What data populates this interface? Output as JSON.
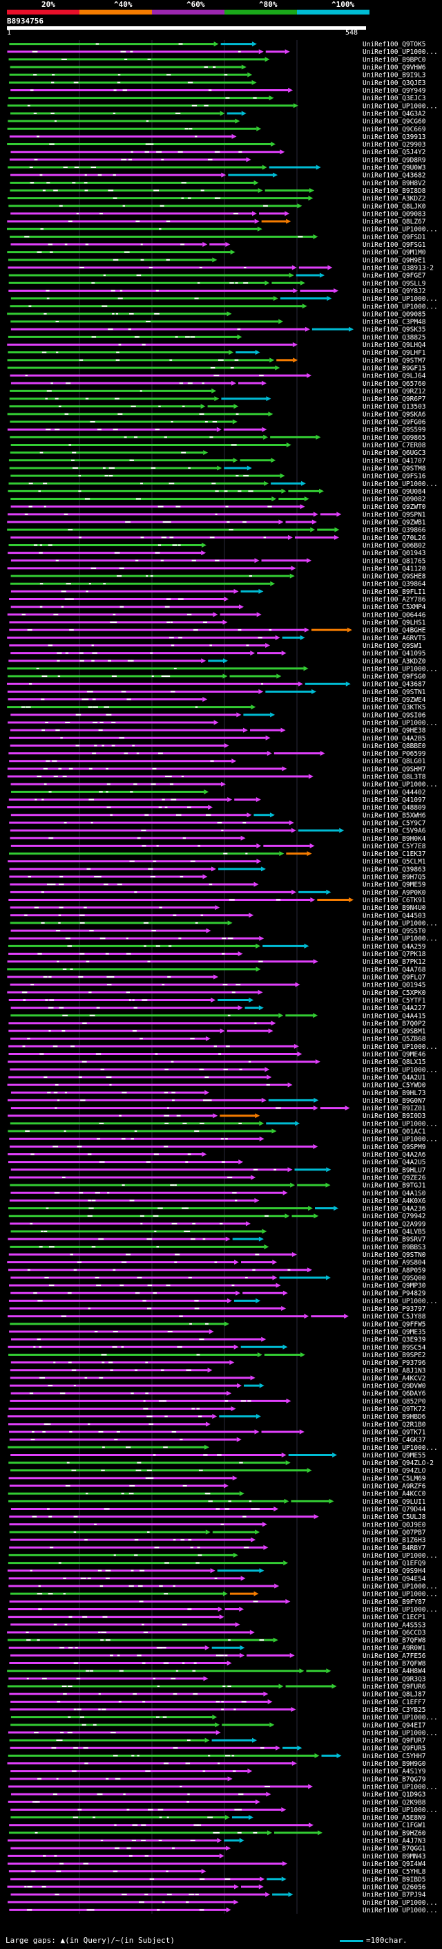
{
  "legend": {
    "labels": [
      "20%",
      "^40%",
      "^60%",
      "^80%",
      "^100%"
    ],
    "colors": [
      "#e8102a",
      "#f57c00",
      "#9c27b0",
      "#1aa81a",
      "#00bcd4"
    ]
  },
  "query": {
    "id": "B8934756",
    "start": "1",
    "end": "548"
  },
  "hit_colors": {
    "magenta": "#e040fb",
    "green": "#33cc33",
    "cyan": "#00bcd4",
    "orange": "#f57c00"
  },
  "hits": [
    "UniRef100_Q9TOK5",
    "UniRef100_UP1000...",
    "UniRef100_B9BPC0",
    "UniRef100_Q9VHW6",
    "UniRef100_B9I9L3",
    "UniRef100_Q3QJE3",
    "UniRef100_Q9Y949",
    "UniRef100_Q3EJC3",
    "UniRef100_UP1000...",
    "UniRef100_Q4G3A2",
    "UniRef100_Q9CG60",
    "UniRef100_Q9C669",
    "UniRef100_Q39913",
    "UniRef100_Q29903",
    "UniRef100_Q5J4Y2",
    "UniRef100_Q9D8R9",
    "UniRef100_Q9U0W3",
    "UniRef100_Q43682",
    "UniRef100_B9H8V2",
    "UniRef100_B9I8D8",
    "UniRef100_A3KDZ2",
    "UniRef100_Q8LJK0",
    "UniRef100_Q09083",
    "UniRef100_Q8LZ67",
    "UniRef100_UP1000...",
    "UniRef100_Q9FSD1",
    "UniRef100_Q9FSG1",
    "UniRef100_Q9M1M0",
    "UniRef100_Q9H9E1",
    "UniRef100_Q38913-2",
    "UniRef100_Q9FGE7",
    "UniRef100_Q9SLL9",
    "UniRef100_Q9Y8J2",
    "UniRef100_UP1000...",
    "UniRef100_UP1000...",
    "UniRef100_Q09085",
    "UniRef100_C3PM48",
    "UniRef100_Q9SK35",
    "UniRef100_Q38825",
    "UniRef100_Q9LHQ4",
    "UniRef100_Q9LHF1",
    "UniRef100_Q9STM7",
    "UniRef100_B9GF15",
    "UniRef100_Q9LJ64",
    "UniRef100_Q65760",
    "UniRef100_Q9RZ12",
    "UniRef100_Q9R6P7",
    "UniRef100_Q13503",
    "UniRef100_Q9SKA6",
    "UniRef100_Q9FG06",
    "UniRef100_Q9S599",
    "UniRef100_Q09865",
    "UniRef100_C7ER08",
    "UniRef100_Q6UGC3",
    "UniRef100_Q41707",
    "UniRef100_Q9STM8",
    "UniRef100_Q9FS16",
    "UniRef100_UP1000...",
    "UniRef100_Q9U084",
    "UniRef100_Q09082",
    "UniRef100_Q9ZWT0",
    "UniRef100_Q9SPN1",
    "UniRef100_Q9ZWB1",
    "UniRef100_Q39866",
    "UniRef100_Q70L26",
    "UniRef100_Q06B02",
    "UniRef100_Q01943",
    "UniRef100_Q81765",
    "UniRef100_Q41120",
    "UniRef100_Q9SHE8",
    "UniRef100_Q39864",
    "UniRef100_B9FLI1",
    "UniRef100_A2Y786",
    "UniRef100_C5XMP4",
    "UniRef100_Q06446",
    "UniRef100_Q9LHS1",
    "UniRef100_Q4BGHE",
    "UniRef100_A6RVT5",
    "UniRef100_Q9SW1",
    "UniRef100_Q41095",
    "UniRef100_A3KDZ0",
    "UniRef100_UP1000...",
    "UniRef100_Q9FSG0",
    "UniRef100_Q43687",
    "UniRef100_Q9STN1",
    "UniRef100_Q9ZWE4",
    "UniRef100_Q3KTK5",
    "UniRef100_Q9SI06",
    "UniRef100_UP1000...",
    "UniRef100_Q9HE38",
    "UniRef100_Q4A2B5",
    "UniRef100_Q8BBE0",
    "UniRef100_P06599",
    "UniRef100_Q8LG01",
    "UniRef100_Q9SHM7",
    "UniRef100_Q8L3T8",
    "UniRef100_UP1000...",
    "UniRef100_Q44402",
    "UniRef100_Q41097",
    "UniRef100_Q48809",
    "UniRef100_B5XWH6",
    "UniRef100_C5Y9C7",
    "UniRef100_C5V9A6",
    "UniRef100_B9H0K4",
    "UniRef100_C5Y7E8",
    "UniRef100_C1EK37",
    "UniRef100_Q5CLM1",
    "UniRef100_Q39863",
    "UniRef100_B9H7Q5",
    "UniRef100_Q9ME59",
    "UniRef100_A9P0K0",
    "UniRef100_C6TK91",
    "UniRef100_B9N4U0",
    "UniRef100_Q44503",
    "UniRef100_UP1000...",
    "UniRef100_Q9S5T0",
    "UniRef100_UP1000...",
    "UniRef100_Q4A259",
    "UniRef100_Q7PK18",
    "UniRef100_B7PK12",
    "UniRef100_Q4A768",
    "UniRef100_Q9FLQ7",
    "UniRef100_Q01945",
    "UniRef100_C5XPK0",
    "UniRef100_C5YTF1",
    "UniRef100_Q4A227",
    "UniRef100_Q4A415",
    "UniRef100_B7Q0P2",
    "UniRef100_Q9SBM1",
    "UniRef100_Q5ZB68",
    "UniRef100_UP1000...",
    "UniRef100_Q9ME46",
    "UniRef100_Q8LX15",
    "UniRef100_UP1000...",
    "UniRef100_Q4A2U1",
    "UniRef100_C5YWD0",
    "UniRef100_B9HL73",
    "UniRef100_B9G0N7",
    "UniRef100_B9IZ01",
    "UniRef100_B9I0D3",
    "UniRef100_UP1000...",
    "UniRef100_Q01AC1",
    "UniRef100_UP1000...",
    "UniRef100_Q9SPM9",
    "UniRef100_Q4A2A6",
    "UniRef100_Q4A2U5",
    "UniRef100_B9HLU7",
    "UniRef100_Q9ZE26",
    "UniRef100_B9TGJ1",
    "UniRef100_Q4A1S0",
    "UniRef100_A4K0X6",
    "UniRef100_Q4A236",
    "UniRef100_Q79942",
    "UniRef100_Q2A999",
    "UniRef100_Q4LVB5",
    "UniRef100_B9SRV7",
    "UniRef100_B9BBS3",
    "UniRef100_Q9STN0",
    "UniRef100_A9S804",
    "UniRef100_A8P059",
    "UniRef100_Q9SQ00",
    "UniRef100_Q9MP30",
    "UniRef100_P94829",
    "UniRef100_UP1000...",
    "UniRef100_P93797",
    "UniRef100_C5JY88",
    "UniRef100_Q9FFW5",
    "UniRef100_Q9ME35",
    "UniRef100_Q3E939",
    "UniRef100_B9SC54",
    "UniRef100_B9SPE2",
    "UniRef100_P93796",
    "UniRef100_A8J1N3",
    "UniRef100_A4KCV2",
    "UniRef100_Q9DVW0",
    "UniRef100_Q6DAY6",
    "UniRef100_Q852P0",
    "UniRef100_Q9TK72",
    "UniRef100_B9HBD6",
    "UniRef100_Q2R1B0",
    "UniRef100_Q9TK71",
    "UniRef100_C4GK37",
    "UniRef100_UP1000...",
    "UniRef100_Q9ME55",
    "UniRef100_Q94ZLO-2",
    "UniRef100_Q94ZLO",
    "UniRef100_C5LM69",
    "UniRef100_A9RZF6",
    "UniRef100_A4KCC0",
    "UniRef100_Q9LUI1",
    "UniRef100_Q79D44",
    "UniRef100_C5ULJ8",
    "UniRef100_Q0J9E0",
    "UniRef100_Q07PB7",
    "UniRef100_B1Z6H3",
    "UniRef100_B4RBY7",
    "UniRef100_UP1000...",
    "UniRef100_Q1EFQ9",
    "UniRef100_Q9S9H4",
    "UniRef100_Q94E54",
    "UniRef100_UP1000...",
    "UniRef100_UP1000...",
    "UniRef100_B9FY87",
    "UniRef100_UP1000...",
    "UniRef100_C1ECP1",
    "UniRef100_A4S5S3",
    "UniRef100_Q6CCD3",
    "UniRef100_B7QFW8",
    "UniRef100_A9R0W1",
    "UniRef100_A7FE56",
    "UniRef100_B7QFW8",
    "UniRef100_A4H8W4",
    "UniRef100_Q9R3Q3",
    "UniRef100_Q9FUR6",
    "UniRef100_Q8LJ87",
    "UniRef100_C1EFF7",
    "UniRef100_C3YB25",
    "UniRef100_UP1000...",
    "UniRef100_Q94EI7",
    "UniRef100_UP1000...",
    "UniRef100_Q9FUR7",
    "UniRef100_Q9FUR5",
    "UniRef100_C5YHH7",
    "UniRef100_B9H9G0",
    "UniRef100_A4S1Y9",
    "UniRef100_B7QG79",
    "UniRef100_UP1000...",
    "UniRef100_Q1D9G3",
    "UniRef100_Q2K9B8",
    "UniRef100_UP1000...",
    "UniRef100_A5E8N9",
    "UniRef100_C1FGW1",
    "UniRef100_B9HZ60",
    "UniRef100_A4J7N3",
    "UniRef100_B7QGG1",
    "UniRef100_B9MN43",
    "UniRef100_Q9I4W4",
    "UniRef100_C5YHL8",
    "UniRef100_B9IBD5",
    "UniRef100_Q26056",
    "UniRef100_B7PJ94",
    "UniRef100_UP1000...",
    "UniRef100_UP1000..."
  ],
  "footer": {
    "left": "Large gaps: ▲(in Query)/~(in Subject)",
    "right": "=100char."
  }
}
